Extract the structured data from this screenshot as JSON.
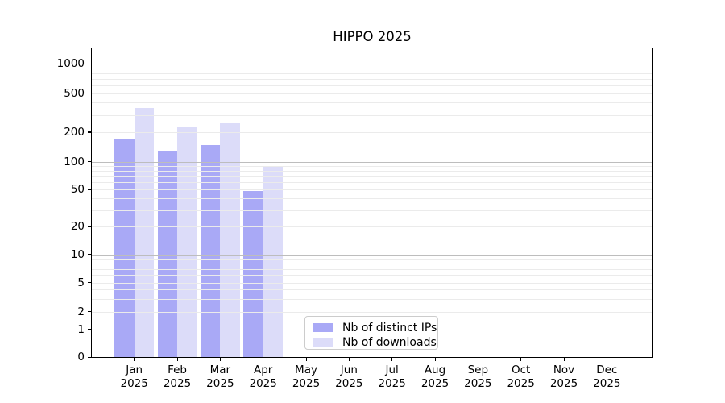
{
  "figure": {
    "title": "HIPPO 2025"
  },
  "chart_data": {
    "type": "bar",
    "title": "HIPPO 2025",
    "x_axis": {
      "categories": [
        "Jan",
        "Feb",
        "Mar",
        "Apr",
        "May",
        "Jun",
        "Jul",
        "Aug",
        "Sep",
        "Oct",
        "Nov",
        "Dec"
      ],
      "year_label": "2025"
    },
    "y_axis": {
      "scale": "symlog",
      "ticks": [
        0,
        1,
        2,
        5,
        10,
        20,
        50,
        100,
        200,
        500,
        1000
      ],
      "range": [
        0,
        1400
      ],
      "grid_major_values": [
        1,
        10,
        100,
        1000
      ],
      "grid_minor_values": [
        2,
        3,
        4,
        5,
        6,
        7,
        8,
        9,
        20,
        30,
        40,
        50,
        60,
        70,
        80,
        90,
        200,
        300,
        400,
        500,
        600,
        700,
        800,
        900
      ]
    },
    "series": [
      {
        "name": "Nb of distinct IPs",
        "color": "#a9a9f6",
        "values": [
          172,
          130,
          148,
          48,
          0,
          0,
          0,
          0,
          0,
          0,
          0,
          0
        ]
      },
      {
        "name": "Nb of downloads",
        "color": "#dcdcf9",
        "values": [
          350,
          225,
          250,
          87,
          0,
          0,
          0,
          0,
          0,
          0,
          0,
          0
        ]
      }
    ],
    "legend_position": "inside-bottom-center",
    "grid": {
      "major_color": "#bdbdbd",
      "minor_color": "#ebebeb"
    }
  }
}
